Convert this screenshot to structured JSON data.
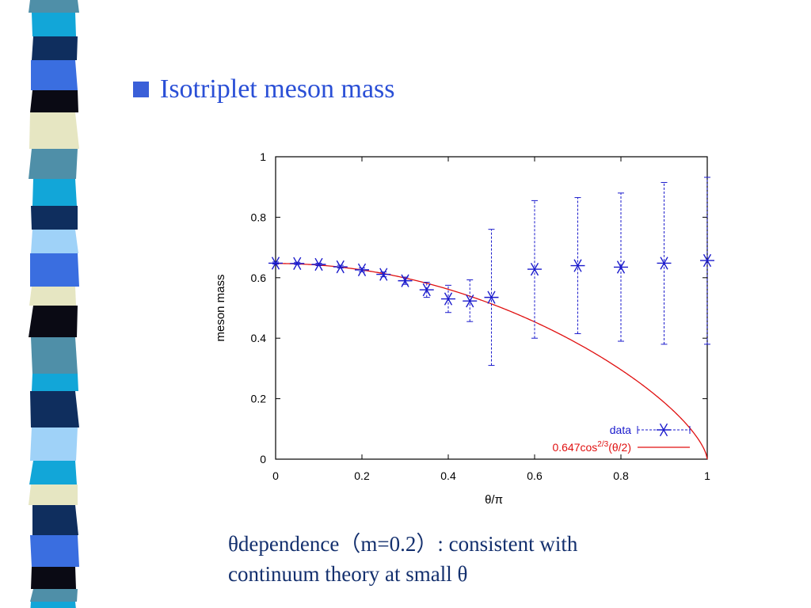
{
  "slide": {
    "title": "Isotriplet meson mass",
    "caption_line1": "θdependence（m=0.2）: consistent with",
    "caption_line2": "continuum theory at small θ"
  },
  "theme": {
    "title_color": "#2a4fd6",
    "caption_color": "#14306e",
    "data_color": "#1a1acc",
    "fit_color": "#e01010"
  },
  "chart_data": {
    "type": "scatter",
    "xlabel": "θ/π",
    "ylabel": "meson mass",
    "xlim": [
      0,
      1
    ],
    "ylim": [
      0,
      1
    ],
    "xticks": [
      "0",
      "0.2",
      "0.4",
      "0.6",
      "0.8",
      "1"
    ],
    "yticks": [
      "0",
      "0.2",
      "0.4",
      "0.6",
      "0.8",
      "1"
    ],
    "legend_position": "bottom-right",
    "series": [
      {
        "name": "data",
        "kind": "points-with-errorbars",
        "x": [
          0,
          0.05,
          0.1,
          0.15,
          0.2,
          0.25,
          0.3,
          0.35,
          0.4,
          0.45,
          0.5,
          0.6,
          0.7,
          0.8,
          0.9,
          1.0
        ],
        "y": [
          0.648,
          0.647,
          0.644,
          0.636,
          0.626,
          0.611,
          0.59,
          0.56,
          0.53,
          0.523,
          0.535,
          0.628,
          0.64,
          0.635,
          0.648,
          0.657
        ],
        "err_low": [
          0.645,
          0.644,
          0.64,
          0.632,
          0.62,
          0.603,
          0.578,
          0.535,
          0.485,
          0.455,
          0.31,
          0.4,
          0.415,
          0.39,
          0.38,
          0.38
        ],
        "err_high": [
          0.652,
          0.651,
          0.648,
          0.641,
          0.632,
          0.619,
          0.602,
          0.585,
          0.575,
          0.593,
          0.76,
          0.855,
          0.865,
          0.88,
          0.915,
          0.932
        ]
      },
      {
        "name_prefix": "0.647cos",
        "name_superscript": "2/3",
        "name_suffix": "(θ/2)",
        "kind": "function",
        "amplitude": 0.647,
        "exponent": 0.6667
      }
    ]
  }
}
